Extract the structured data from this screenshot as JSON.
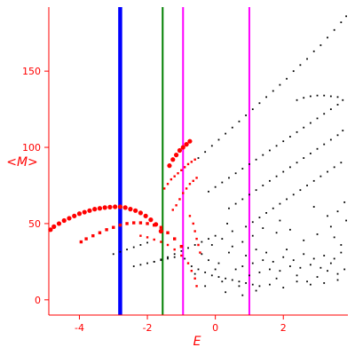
{
  "chart_data": {
    "type": "scatter",
    "xlabel": "E",
    "ylabel": "<M>",
    "xlim": [
      -4.9,
      3.9
    ],
    "ylim": [
      -10,
      192
    ],
    "xticks": [
      -4,
      -2,
      0,
      2
    ],
    "yticks": [
      0,
      50,
      100,
      150
    ],
    "grid": false,
    "legend": "none",
    "axis_color": "#ff0000",
    "vertical_lines": [
      {
        "x": -2.8,
        "color": "#0000ff",
        "style": "thick"
      },
      {
        "x": -1.55,
        "color": "#008000",
        "style": "medium"
      },
      {
        "x": -0.95,
        "color": "#ff00ff",
        "style": "medium"
      },
      {
        "x": 1.0,
        "color": "#ff00ff",
        "style": "medium"
      }
    ],
    "series": [
      {
        "color": "#ff0000",
        "marker": "large",
        "points": [
          [
            -4.85,
            46
          ],
          [
            -4.75,
            48
          ],
          [
            -4.6,
            50
          ],
          [
            -4.45,
            52
          ],
          [
            -4.3,
            53.5
          ],
          [
            -4.15,
            55
          ],
          [
            -4.0,
            56.5
          ],
          [
            -3.85,
            57.5
          ],
          [
            -3.7,
            58.5
          ],
          [
            -3.55,
            59.5
          ],
          [
            -3.4,
            60
          ],
          [
            -3.25,
            60.5
          ],
          [
            -3.1,
            60.8
          ],
          [
            -2.95,
            61
          ],
          [
            -2.8,
            61
          ],
          [
            -2.65,
            60.5
          ],
          [
            -2.5,
            59.5
          ],
          [
            -2.35,
            58.5
          ],
          [
            -2.2,
            57
          ],
          [
            -2.05,
            55
          ],
          [
            -1.9,
            52.5
          ],
          [
            -1.75,
            49.5
          ],
          [
            -1.6,
            45
          ]
        ]
      },
      {
        "color": "#ff0000",
        "marker": "large",
        "points": [
          [
            -1.35,
            88
          ],
          [
            -1.25,
            92
          ],
          [
            -1.15,
            95
          ],
          [
            -1.05,
            98
          ],
          [
            -0.95,
            100
          ],
          [
            -0.85,
            102
          ],
          [
            -0.75,
            104
          ]
        ]
      },
      {
        "color": "#ff0000",
        "marker": "medium",
        "points": [
          [
            -3.95,
            38
          ],
          [
            -3.8,
            40
          ],
          [
            -3.6,
            42
          ],
          [
            -3.4,
            44
          ],
          [
            -3.2,
            46
          ],
          [
            -3.0,
            47.5
          ],
          [
            -2.8,
            49
          ],
          [
            -2.6,
            50
          ],
          [
            -2.4,
            50.5
          ],
          [
            -2.2,
            50.5
          ],
          [
            -2.0,
            50
          ],
          [
            -1.8,
            49
          ],
          [
            -1.6,
            47.5
          ],
          [
            -1.4,
            44
          ],
          [
            -1.2,
            40
          ],
          [
            -1.0,
            35
          ]
        ]
      },
      {
        "color": "#ff0000",
        "marker": "small",
        "points": [
          [
            -1.5,
            73
          ],
          [
            -1.4,
            76
          ],
          [
            -1.3,
            79
          ],
          [
            -1.2,
            81
          ],
          [
            -1.1,
            83
          ],
          [
            -1.0,
            85
          ],
          [
            -0.9,
            87
          ],
          [
            -0.8,
            89
          ],
          [
            -0.7,
            90.5
          ],
          [
            -0.6,
            92
          ]
        ]
      },
      {
        "color": "#ff0000",
        "marker": "small",
        "points": [
          [
            -1.25,
            59
          ],
          [
            -1.15,
            62
          ],
          [
            -1.05,
            66
          ],
          [
            -0.95,
            70
          ],
          [
            -0.85,
            73
          ],
          [
            -0.75,
            76
          ],
          [
            -0.65,
            78
          ],
          [
            -0.55,
            80
          ]
        ]
      },
      {
        "color": "#ff0000",
        "marker": "small",
        "points": [
          [
            -2.2,
            42
          ],
          [
            -2.0,
            41
          ],
          [
            -1.8,
            39.5
          ],
          [
            -1.6,
            38
          ],
          [
            -1.4,
            36
          ],
          [
            -1.2,
            33
          ],
          [
            -1.0,
            29
          ],
          [
            -0.8,
            24
          ],
          [
            -0.7,
            19
          ],
          [
            -0.6,
            14
          ],
          [
            -0.55,
            9
          ]
        ]
      },
      {
        "color": "#ff0000",
        "marker": "small",
        "points": [
          [
            -0.75,
            55
          ],
          [
            -0.65,
            50
          ],
          [
            -0.6,
            45
          ],
          [
            -0.55,
            40
          ],
          [
            -0.5,
            36
          ],
          [
            -0.45,
            31
          ]
        ]
      },
      {
        "color": "#000000",
        "marker": "tiny",
        "points": [
          [
            -0.5,
            93
          ],
          [
            -0.3,
            97
          ],
          [
            -0.1,
            101
          ],
          [
            0.1,
            105
          ],
          [
            0.3,
            109
          ],
          [
            0.5,
            113
          ],
          [
            0.7,
            117
          ],
          [
            0.9,
            121
          ],
          [
            1.1,
            125
          ],
          [
            1.3,
            129
          ],
          [
            1.5,
            133
          ],
          [
            1.7,
            137
          ],
          [
            1.9,
            141
          ],
          [
            2.1,
            145
          ],
          [
            2.3,
            150
          ],
          [
            2.5,
            154
          ],
          [
            2.7,
            158
          ],
          [
            2.9,
            163
          ],
          [
            3.1,
            167
          ],
          [
            3.3,
            172
          ],
          [
            3.5,
            177
          ],
          [
            3.7,
            182
          ],
          [
            3.85,
            186
          ]
        ]
      },
      {
        "color": "#000000",
        "marker": "tiny",
        "points": [
          [
            -0.2,
            71
          ],
          [
            0.0,
            74
          ],
          [
            0.2,
            77
          ],
          [
            0.4,
            80
          ],
          [
            0.6,
            83
          ],
          [
            0.8,
            86
          ],
          [
            1.0,
            89
          ],
          [
            1.2,
            92
          ],
          [
            1.4,
            95
          ],
          [
            1.6,
            98
          ],
          [
            1.8,
            101
          ],
          [
            2.0,
            104
          ],
          [
            2.2,
            107
          ],
          [
            2.4,
            110
          ],
          [
            2.6,
            113
          ],
          [
            2.8,
            116
          ],
          [
            3.0,
            119
          ],
          [
            3.2,
            122
          ],
          [
            3.4,
            125
          ],
          [
            3.6,
            128
          ]
        ]
      },
      {
        "color": "#000000",
        "marker": "tiny",
        "points": [
          [
            2.4,
            131
          ],
          [
            2.6,
            132.5
          ],
          [
            2.8,
            133.5
          ],
          [
            3.0,
            134
          ],
          [
            3.2,
            134
          ],
          [
            3.4,
            133.5
          ],
          [
            3.6,
            133
          ],
          [
            3.75,
            131
          ]
        ]
      },
      {
        "color": "#000000",
        "marker": "tiny",
        "points": [
          [
            0.4,
            60
          ],
          [
            0.6,
            63
          ],
          [
            0.8,
            66
          ],
          [
            1.0,
            69
          ],
          [
            1.2,
            72
          ],
          [
            1.4,
            75
          ],
          [
            1.6,
            78
          ],
          [
            1.8,
            81
          ],
          [
            2.0,
            84
          ],
          [
            2.2,
            87
          ],
          [
            2.4,
            90
          ],
          [
            2.6,
            93
          ],
          [
            2.8,
            96
          ],
          [
            3.0,
            99
          ],
          [
            3.2,
            102
          ],
          [
            3.4,
            105
          ],
          [
            3.6,
            108
          ],
          [
            3.75,
            111
          ]
        ]
      },
      {
        "color": "#000000",
        "marker": "tiny",
        "points": [
          [
            0.9,
            48
          ],
          [
            1.1,
            51
          ],
          [
            1.3,
            54
          ],
          [
            1.5,
            57
          ],
          [
            1.7,
            60
          ],
          [
            1.9,
            63
          ],
          [
            2.1,
            66
          ],
          [
            2.3,
            69
          ],
          [
            2.5,
            72
          ],
          [
            2.7,
            75
          ],
          [
            2.9,
            78
          ],
          [
            3.1,
            81
          ],
          [
            3.3,
            84
          ],
          [
            3.5,
            87
          ],
          [
            3.7,
            90
          ]
        ]
      },
      {
        "color": "#000000",
        "marker": "tiny",
        "points": [
          [
            -1.8,
            25
          ],
          [
            -1.6,
            26.5
          ],
          [
            -1.4,
            28
          ],
          [
            -1.2,
            30
          ],
          [
            -1.0,
            32
          ],
          [
            -0.8,
            34
          ],
          [
            -0.6,
            36
          ],
          [
            -0.4,
            38
          ],
          [
            -0.2,
            40
          ],
          [
            0.0,
            42
          ]
        ]
      },
      {
        "color": "#000000",
        "marker": "tiny",
        "points": [
          [
            -3.0,
            30
          ],
          [
            -2.8,
            31.5
          ],
          [
            -2.6,
            33
          ],
          [
            -2.4,
            34.5
          ],
          [
            -2.2,
            36
          ],
          [
            -2.0,
            37.5
          ]
        ]
      },
      {
        "color": "#000000",
        "marker": "tiny",
        "points": [
          [
            -2.4,
            22
          ],
          [
            -2.2,
            23
          ],
          [
            -2.0,
            24
          ],
          [
            -1.8,
            25
          ],
          [
            -1.6,
            26
          ],
          [
            -1.4,
            27
          ],
          [
            -1.2,
            28
          ]
        ]
      },
      {
        "color": "#000000",
        "marker": "tiny",
        "points": [
          [
            -0.7,
            22
          ],
          [
            -0.5,
            20
          ],
          [
            -0.3,
            18
          ],
          [
            -0.1,
            16
          ],
          [
            0.1,
            15
          ],
          [
            0.3,
            14
          ],
          [
            0.5,
            13
          ],
          [
            0.7,
            12
          ],
          [
            0.9,
            11
          ],
          [
            1.1,
            10
          ],
          [
            1.3,
            9
          ]
        ]
      },
      {
        "color": "#000000",
        "marker": "tiny",
        "points": [
          [
            -0.9,
            27
          ],
          [
            -0.4,
            30
          ],
          [
            0.1,
            24
          ],
          [
            0.5,
            35
          ],
          [
            0.9,
            29
          ],
          [
            1.3,
            18
          ],
          [
            1.7,
            25
          ],
          [
            2.1,
            33
          ],
          [
            2.5,
            21
          ],
          [
            2.9,
            27
          ],
          [
            3.3,
            19
          ],
          [
            3.7,
            31
          ],
          [
            -0.6,
            17
          ],
          [
            0.2,
            12
          ],
          [
            0.6,
            20
          ],
          [
            1.0,
            16
          ],
          [
            1.4,
            26
          ],
          [
            1.8,
            14
          ],
          [
            2.2,
            22
          ],
          [
            2.6,
            30
          ],
          [
            3.0,
            15
          ],
          [
            3.4,
            24
          ],
          [
            3.8,
            20
          ],
          [
            -0.2,
            26
          ],
          [
            0.4,
            31
          ],
          [
            0.8,
            22
          ],
          [
            1.2,
            33
          ],
          [
            1.6,
            20
          ],
          [
            2.0,
            28
          ],
          [
            2.4,
            16
          ],
          [
            2.8,
            23
          ],
          [
            3.2,
            29
          ],
          [
            3.6,
            17
          ],
          [
            0.0,
            20
          ],
          [
            0.7,
            9
          ],
          [
            1.1,
            24
          ],
          [
            1.5,
            31
          ],
          [
            1.9,
            19
          ],
          [
            2.3,
            26
          ],
          [
            2.7,
            12
          ],
          [
            3.1,
            21
          ],
          [
            3.5,
            27
          ],
          [
            -0.3,
            9
          ],
          [
            0.3,
            5
          ],
          [
            0.8,
            3
          ],
          [
            1.2,
            6
          ],
          [
            1.6,
            10
          ],
          [
            2.0,
            8
          ],
          [
            2.4,
            12
          ],
          [
            2.8,
            10
          ],
          [
            3.2,
            11
          ],
          [
            3.6,
            13
          ],
          [
            0.2,
            40
          ],
          [
            0.5,
            45
          ],
          [
            0.8,
            38
          ],
          [
            1.1,
            42
          ],
          [
            1.4,
            47
          ],
          [
            1.8,
            44
          ],
          [
            2.2,
            46
          ],
          [
            2.6,
            39
          ],
          [
            3.0,
            43
          ],
          [
            3.4,
            48
          ],
          [
            3.7,
            36
          ],
          [
            3.85,
            52
          ],
          [
            3.6,
            58
          ],
          [
            3.3,
            55
          ],
          [
            2.9,
            61
          ],
          [
            3.8,
            64
          ],
          [
            3.5,
            41
          ],
          [
            -0.1,
            36
          ],
          [
            0.35,
            50
          ],
          [
            1.9,
            52
          ]
        ]
      }
    ]
  }
}
